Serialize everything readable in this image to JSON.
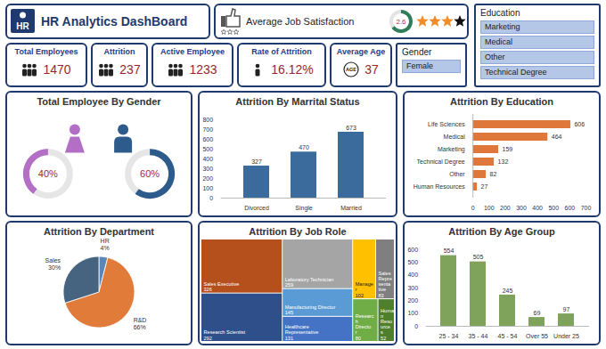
{
  "header": {
    "title": "HR Analytics DashBoard",
    "logo_text": "HR"
  },
  "job_satisfaction": {
    "title": "Average Job Satisfaction",
    "value": 2.6,
    "max": 4
  },
  "kpis": [
    {
      "label": "Total Employees",
      "value": 1470
    },
    {
      "label": "Attrition",
      "value": 237
    },
    {
      "label": "Active Employee",
      "value": 1233
    },
    {
      "label": "Rate of Attrition",
      "value": 16.12,
      "value_label": "16.12%"
    },
    {
      "label": "Average Age",
      "value": 37,
      "icon_text": "AGE"
    }
  ],
  "slicers": [
    {
      "title": "Gender",
      "items": [
        "Female"
      ]
    },
    {
      "title": "Education",
      "items": [
        "Marketing",
        "Medical",
        "Other",
        "Technical Degree"
      ]
    }
  ],
  "chart_data": [
    {
      "type": "donut",
      "title": "Total Employee By Gender",
      "categories": [
        null,
        null
      ],
      "values": [
        40,
        60
      ],
      "value_labels": [
        "40%",
        "60%"
      ],
      "colors": [
        "#b36fc6",
        "#2d5c8c"
      ],
      "data_labels": true
    },
    {
      "type": "bar",
      "title": "Attrition By Marrital Status",
      "categories": [
        "Divorced",
        "Single",
        "Married"
      ],
      "values": [
        327,
        470,
        673
      ],
      "color": "#3b6a9c",
      "ylim": [
        0,
        800
      ],
      "yticks": [
        0,
        100,
        200,
        300,
        400,
        500,
        600,
        700,
        800
      ],
      "grid": false,
      "data_labels": true
    },
    {
      "type": "bar",
      "title": "Attrition By Education",
      "orientation": "horizontal",
      "categories": [
        "Life Sciences",
        "Medical",
        "Marketing",
        "Technical Degree",
        "Other",
        "Human Resources"
      ],
      "values": [
        606,
        464,
        159,
        132,
        82,
        27
      ],
      "color": "#e0773a",
      "xlim": [
        0,
        700
      ],
      "xticks": [
        0,
        100,
        200,
        300,
        400,
        500,
        600,
        700
      ],
      "grid": false,
      "data_labels": true
    },
    {
      "type": "pie",
      "title": "Attrition By Department",
      "categories": [
        "HR",
        "R&D",
        "Sales"
      ],
      "values": [
        4,
        66,
        30
      ],
      "value_labels": [
        "4%",
        "66%",
        "30%"
      ],
      "colors": [
        "#5b86b8",
        "#e07b39",
        "#46647f"
      ],
      "data_labels": true
    },
    {
      "type": "treemap",
      "title": "Attrition By Job Role",
      "categories": [
        "Sales Executive",
        "Research Scientist",
        "Laboratory Technician",
        "Manufacturing Director",
        "Healthcare Representative",
        "Manager",
        "Sales Representative",
        "Research Director",
        "Human Resources"
      ],
      "values": [
        326,
        292,
        259,
        145,
        131,
        102,
        83,
        80,
        52
      ],
      "colors": [
        "#b5501c",
        "#2f4f8a",
        "#a5a5a5",
        "#5b9bd5",
        "#4472c4",
        "#ffc000",
        "#7f7f7f",
        "#70ad47",
        "#4e7f2c"
      ],
      "data_labels": true
    },
    {
      "type": "bar",
      "title": "Attrition By Age Group",
      "categories": [
        "25 - 34",
        "35 - 44",
        "45 - 54",
        "Over 55",
        "Under 25"
      ],
      "values": [
        554,
        505,
        245,
        69,
        97
      ],
      "color": "#7fa35a",
      "ylim": [
        0,
        600
      ],
      "yticks": [
        0,
        100,
        200,
        300,
        400,
        500,
        600
      ],
      "grid": false,
      "data_labels": true
    }
  ]
}
